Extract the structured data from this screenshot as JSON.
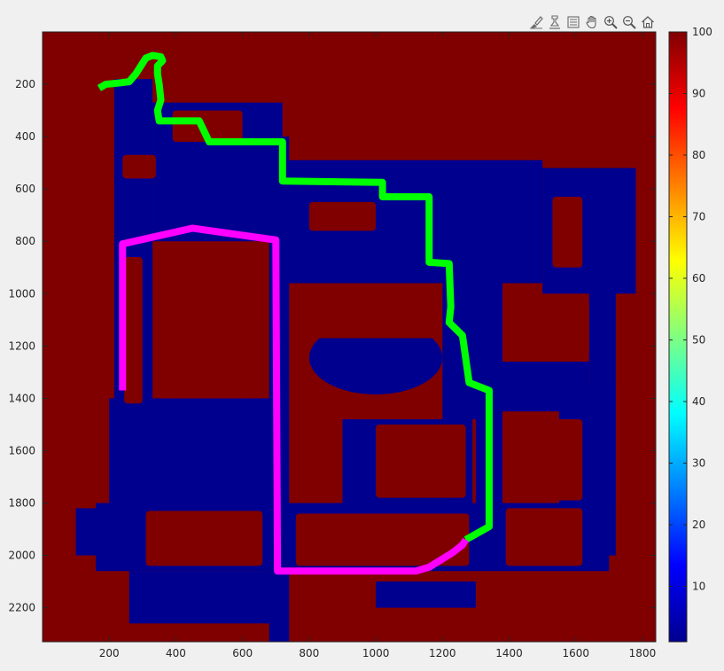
{
  "toolbar": {
    "icons": [
      "brush-icon",
      "data-tips-icon",
      "legend-icon",
      "pan-hand-icon",
      "zoom-in-icon",
      "zoom-out-icon",
      "home-icon"
    ]
  },
  "colors": {
    "free_space": "#00008f",
    "obstacle": "#800000",
    "path_1": "#00ff00",
    "path_2": "#ff00ff",
    "figure_bg": "#f0f0f0",
    "axis": "#262626"
  },
  "chart_data": {
    "type": "heatmap",
    "title": "",
    "xlabel": "",
    "ylabel": "",
    "xlim": [
      0,
      1840
    ],
    "ylim": [
      2330,
      0
    ],
    "y_reversed": true,
    "xticks": [
      200,
      400,
      600,
      800,
      1000,
      1200,
      1400,
      1600,
      1800
    ],
    "yticks": [
      200,
      400,
      600,
      800,
      1000,
      1200,
      1400,
      1600,
      1800,
      2000,
      2200
    ],
    "colormap": "jet",
    "clim": [
      1,
      100
    ],
    "colorbar_ticks": [
      10,
      20,
      30,
      40,
      50,
      60,
      70,
      80,
      90,
      100
    ],
    "grid": false,
    "map_values": {
      "free": 1,
      "occupied": 100
    },
    "free_regions": [
      {
        "shape": "rect",
        "x": [
          215,
          330
        ],
        "y": [
          180,
          1460
        ]
      },
      {
        "shape": "rect",
        "x": [
          330,
          720
        ],
        "y": [
          270,
          800
        ]
      },
      {
        "shape": "rect",
        "x": [
          680,
          740
        ],
        "y": [
          400,
          2330
        ]
      },
      {
        "shape": "rect",
        "x": [
          720,
          1500
        ],
        "y": [
          490,
          960
        ]
      },
      {
        "shape": "rect",
        "x": [
          1200,
          1380
        ],
        "y": [
          860,
          1480
        ]
      },
      {
        "shape": "rect",
        "x": [
          1500,
          1780
        ],
        "y": [
          520,
          1000
        ]
      },
      {
        "shape": "rect",
        "x": [
          1640,
          1720
        ],
        "y": [
          580,
          2000
        ]
      },
      {
        "shape": "rect",
        "x": [
          1380,
          1640
        ],
        "y": [
          1260,
          1450
        ]
      },
      {
        "shape": "rect",
        "x": [
          1300,
          1380
        ],
        "y": [
          1450,
          2000
        ]
      },
      {
        "shape": "rect",
        "x": [
          160,
          1700
        ],
        "y": [
          1800,
          2060
        ]
      },
      {
        "shape": "rect",
        "x": [
          200,
          700
        ],
        "y": [
          1400,
          1820
        ]
      },
      {
        "shape": "rect",
        "x": [
          900,
          1290
        ],
        "y": [
          1480,
          1820
        ]
      },
      {
        "shape": "rect",
        "x": [
          260,
          720
        ],
        "y": [
          2060,
          2260
        ]
      },
      {
        "shape": "rect",
        "x": [
          1000,
          1300
        ],
        "y": [
          2100,
          2200
        ]
      },
      {
        "shape": "rect",
        "x": [
          1550,
          1720
        ],
        "y": [
          1350,
          1800
        ]
      },
      {
        "shape": "rect",
        "x": [
          100,
          260
        ],
        "y": [
          1820,
          2000
        ]
      },
      {
        "shape": "ellipse",
        "cx": 1000,
        "cy": 1245,
        "rx": 200,
        "ry": 140
      }
    ],
    "occupied_islands": [
      {
        "x": [
          245,
          300
        ],
        "y": [
          860,
          1420
        ]
      },
      {
        "x": [
          350,
          640
        ],
        "y": [
          850,
          1400
        ]
      },
      {
        "x": [
          760,
          1190
        ],
        "y": [
          1000,
          1170
        ]
      },
      {
        "x": [
          760,
          1190
        ],
        "y": [
          1390,
          1470
        ]
      },
      {
        "x": [
          1420,
          1640
        ],
        "y": [
          1020,
          1240
        ]
      },
      {
        "x": [
          1420,
          1620
        ],
        "y": [
          1480,
          1790
        ]
      },
      {
        "x": [
          1000,
          1270
        ],
        "y": [
          1500,
          1780
        ]
      },
      {
        "x": [
          310,
          660
        ],
        "y": [
          1830,
          2040
        ]
      },
      {
        "x": [
          760,
          1280
        ],
        "y": [
          1840,
          2040
        ]
      },
      {
        "x": [
          1390,
          1620
        ],
        "y": [
          1820,
          2040
        ]
      },
      {
        "x": [
          390,
          600
        ],
        "y": [
          300,
          420
        ]
      },
      {
        "x": [
          800,
          1000
        ],
        "y": [
          650,
          760
        ]
      },
      {
        "x": [
          1530,
          1620
        ],
        "y": [
          630,
          900
        ]
      },
      {
        "x": [
          240,
          340
        ],
        "y": [
          470,
          560
        ]
      }
    ],
    "series": [
      {
        "values": [
          [
            170,
            215
          ],
          [
            190,
            200
          ],
          [
            230,
            195
          ],
          [
            260,
            190
          ],
          [
            280,
            160
          ],
          [
            300,
            120
          ],
          [
            310,
            100
          ],
          [
            330,
            90
          ],
          [
            355,
            95
          ],
          [
            360,
            110
          ],
          [
            345,
            130
          ],
          [
            345,
            160
          ],
          [
            350,
            200
          ],
          [
            355,
            260
          ],
          [
            345,
            300
          ],
          [
            350,
            340
          ],
          [
            470,
            340
          ],
          [
            500,
            420
          ],
          [
            720,
            420
          ],
          [
            720,
            570
          ],
          [
            1020,
            575
          ],
          [
            1020,
            630
          ],
          [
            1160,
            630
          ],
          [
            1160,
            880
          ],
          [
            1220,
            885
          ],
          [
            1225,
            1050
          ],
          [
            1220,
            1110
          ],
          [
            1260,
            1160
          ],
          [
            1280,
            1340
          ],
          [
            1340,
            1370
          ],
          [
            1340,
            1890
          ],
          [
            1270,
            1940
          ]
        ]
      },
      {
        "values": [
          [
            240,
            1370
          ],
          [
            240,
            810
          ],
          [
            450,
            750
          ],
          [
            700,
            795
          ],
          [
            705,
            2060
          ],
          [
            1120,
            2060
          ],
          [
            1160,
            2045
          ],
          [
            1230,
            1990
          ],
          [
            1260,
            1960
          ],
          [
            1270,
            1940
          ]
        ]
      }
    ]
  }
}
